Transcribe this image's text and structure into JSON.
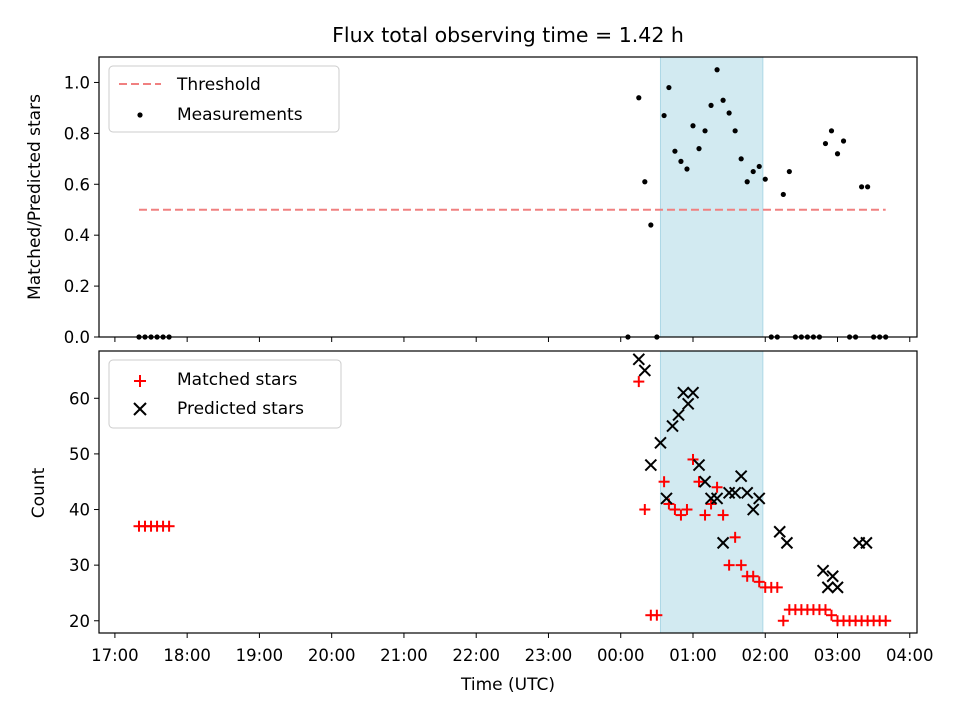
{
  "chart_data": [
    {
      "type": "scatter",
      "panel": "top",
      "title": "Flux total observing time = 1.42 h",
      "xlabel": "",
      "ylabel": "Matched/Predicted stars",
      "ylim": [
        0,
        1.1
      ],
      "yticks": [
        0.0,
        0.2,
        0.4,
        0.6,
        0.8,
        1.0
      ],
      "ytick_labels": [
        "0.0",
        "0.2",
        "0.4",
        "0.6",
        "0.8",
        "1.0"
      ],
      "xlim_hours": [
        16.78,
        28.1
      ],
      "legend_position": "upper-left",
      "threshold": {
        "name": "Threshold",
        "value": 0.5,
        "x_from": "17:20",
        "x_to": "03:40",
        "color": "#f08080"
      },
      "highlight_span": {
        "from": "00:33",
        "to": "01:58",
        "color": "#add8e6"
      },
      "series": [
        {
          "name": "Measurements",
          "color": "#000000",
          "x": [
            "17:20",
            "17:25",
            "17:30",
            "17:35",
            "17:40",
            "17:45",
            "00:06",
            "00:15",
            "00:20",
            "00:25",
            "00:30",
            "00:36",
            "00:40",
            "00:45",
            "00:50",
            "00:55",
            "01:00",
            "01:05",
            "01:10",
            "01:15",
            "01:20",
            "01:25",
            "01:30",
            "01:35",
            "01:40",
            "01:45",
            "01:50",
            "01:55",
            "02:00",
            "02:05",
            "02:10",
            "02:15",
            "02:20",
            "02:25",
            "02:30",
            "02:35",
            "02:40",
            "02:45",
            "02:50",
            "02:55",
            "03:00",
            "03:05",
            "03:10",
            "03:15",
            "03:20",
            "03:25",
            "03:30",
            "03:35",
            "03:40"
          ],
          "y": [
            0,
            0,
            0,
            0,
            0,
            0,
            0,
            0.94,
            0.61,
            0.44,
            0,
            0.87,
            0.98,
            0.73,
            0.69,
            0.66,
            0.83,
            0.74,
            0.81,
            0.91,
            1.05,
            0.93,
            0.88,
            0.81,
            0.7,
            0.61,
            0.65,
            0.67,
            0.62,
            0,
            0,
            0.56,
            0.65,
            0,
            0,
            0,
            0,
            0,
            0.76,
            0.81,
            0.72,
            0.77,
            0,
            0,
            0.59,
            0.59,
            0,
            0,
            0
          ]
        }
      ]
    },
    {
      "type": "scatter",
      "panel": "bottom",
      "xlabel": "Time (UTC)",
      "ylabel": "Count",
      "ylim": [
        17.8,
        68.5
      ],
      "yticks": [
        20,
        30,
        40,
        50,
        60
      ],
      "ytick_labels": [
        "20",
        "30",
        "40",
        "50",
        "60"
      ],
      "xticks": [
        "17:00",
        "18:00",
        "19:00",
        "20:00",
        "21:00",
        "22:00",
        "23:00",
        "00:00",
        "01:00",
        "02:00",
        "03:00",
        "04:00"
      ],
      "xtick_labels": [
        "17:00",
        "18:00",
        "19:00",
        "20:00",
        "21:00",
        "22:00",
        "23:00",
        "00:00",
        "01:00",
        "02:00",
        "03:00",
        "04:00"
      ],
      "legend_position": "upper-left",
      "highlight_span": {
        "from": "00:33",
        "to": "01:58",
        "color": "#add8e6"
      },
      "series": [
        {
          "name": "Matched stars",
          "marker": "plus",
          "color": "#ff0000",
          "x": [
            "17:20",
            "17:25",
            "17:30",
            "17:35",
            "17:40",
            "17:45",
            "00:15",
            "00:20",
            "00:25",
            "00:30",
            "00:36",
            "00:40",
            "00:45",
            "00:50",
            "00:55",
            "01:00",
            "01:05",
            "01:10",
            "01:15",
            "01:20",
            "01:25",
            "01:30",
            "01:35",
            "01:40",
            "01:45",
            "01:50",
            "01:55",
            "02:00",
            "02:05",
            "02:10",
            "02:15",
            "02:20",
            "02:25",
            "02:30",
            "02:35",
            "02:40",
            "02:45",
            "02:50",
            "02:55",
            "03:00",
            "03:05",
            "03:10",
            "03:15",
            "03:20",
            "03:25",
            "03:30",
            "03:35",
            "03:40"
          ],
          "y": [
            37,
            37,
            37,
            37,
            37,
            37,
            63,
            40,
            21,
            21,
            45,
            41,
            40,
            39,
            40,
            49,
            45,
            39,
            41,
            44,
            39,
            30,
            35,
            30,
            28,
            28,
            27,
            26,
            26,
            26,
            20,
            22,
            22,
            22,
            22,
            22,
            22,
            22,
            21,
            20,
            20,
            20,
            20,
            20,
            20,
            20,
            20,
            20
          ]
        },
        {
          "name": "Predicted stars",
          "marker": "x",
          "color": "#000000",
          "x": [
            "00:15",
            "00:20",
            "00:25",
            "00:33",
            "00:38",
            "00:43",
            "00:48",
            "00:52",
            "00:56",
            "01:00",
            "01:05",
            "01:10",
            "01:15",
            "01:20",
            "01:25",
            "01:30",
            "01:35",
            "01:40",
            "01:45",
            "01:50",
            "01:55",
            "02:00",
            "02:05",
            "02:12",
            "02:18",
            "02:48",
            "02:52",
            "02:56",
            "03:00",
            "03:18",
            "03:24"
          ],
          "y": [
            67,
            65,
            48,
            52,
            42,
            55,
            57,
            61,
            59,
            61,
            48,
            45,
            42,
            42,
            34,
            43,
            43,
            46,
            43,
            40,
            42,
            null,
            null,
            36,
            34,
            29,
            26,
            28,
            26,
            34,
            34
          ]
        }
      ]
    }
  ]
}
